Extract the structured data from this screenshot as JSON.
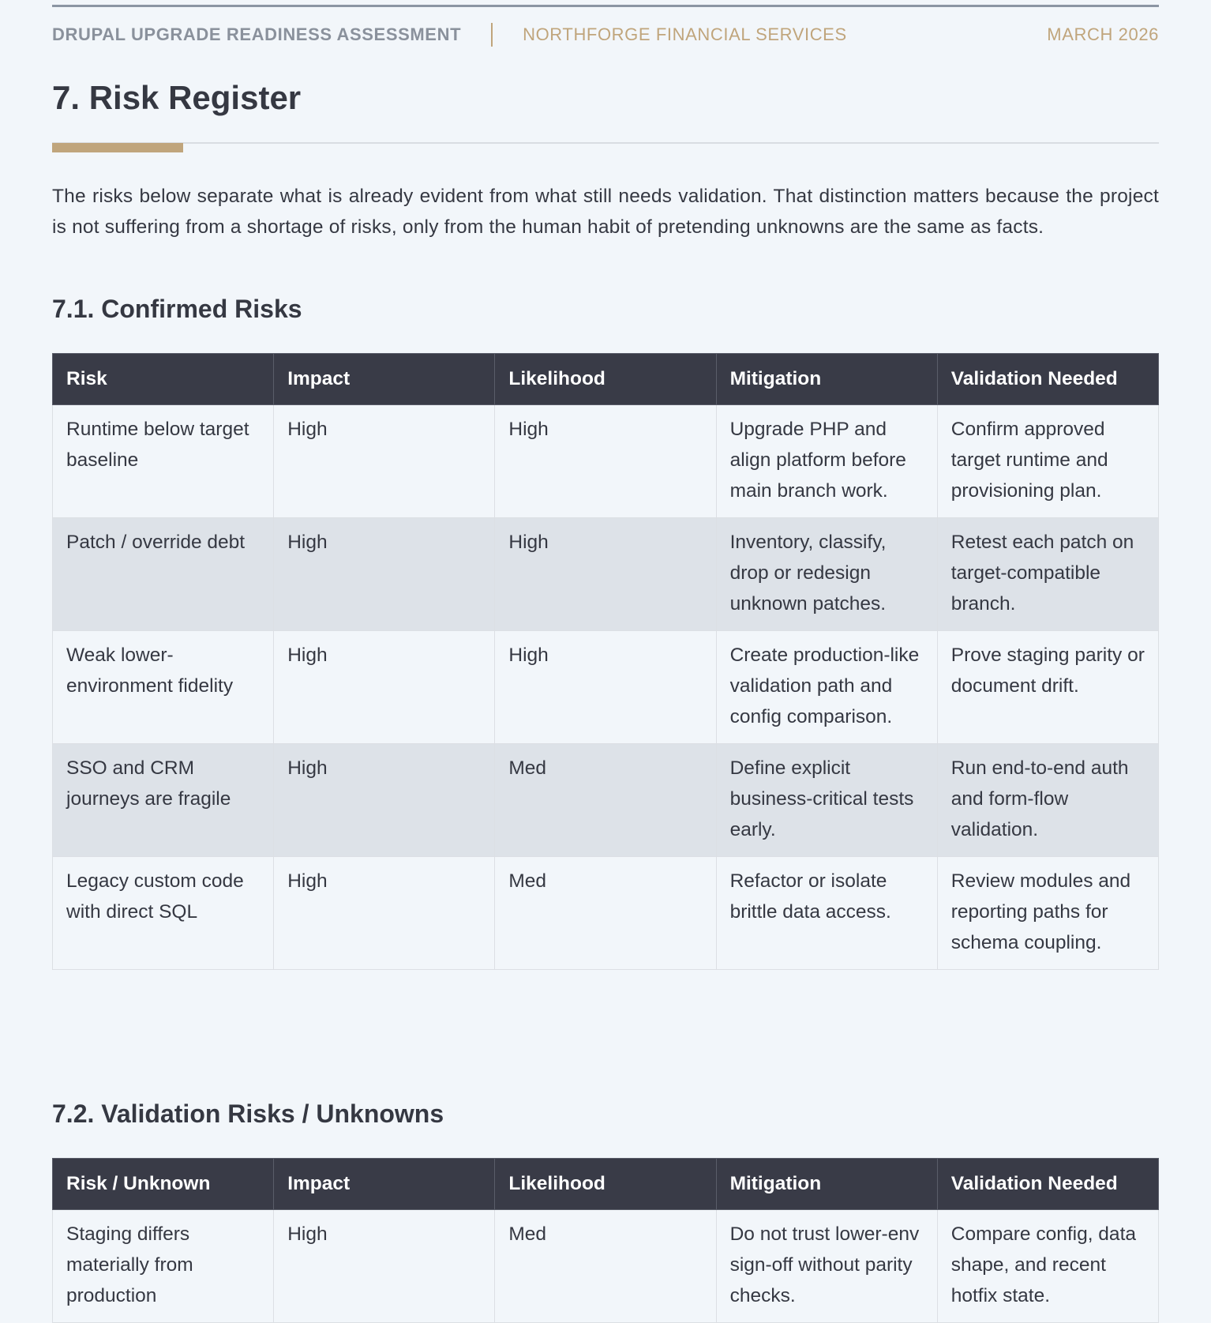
{
  "header": {
    "document_title": "DRUPAL UPGRADE READINESS ASSESSMENT",
    "client": "NORTHFORGE FINANCIAL SERVICES",
    "date": "MARCH 2026"
  },
  "section": {
    "title": "7. Risk Register",
    "intro": "The risks below separate what is already evident from what still needs validation. That distinction matters because the project is not suffering from a shortage of risks, only from the human habit of pretending unknowns are the same as facts."
  },
  "confirmed": {
    "heading": "7.1. Confirmed Risks",
    "columns": [
      "Risk",
      "Impact",
      "Likelihood",
      "Mitigation",
      "Validation Needed"
    ],
    "rows": [
      [
        "Runtime below target baseline",
        "High",
        "High",
        "Upgrade PHP and align platform before main branch work.",
        "Confirm approved target runtime and provisioning plan."
      ],
      [
        "Patch / override debt",
        "High",
        "High",
        "Inventory, classify, drop or redesign unknown patches.",
        "Retest each patch on target-compatible branch."
      ],
      [
        "Weak lower-environment fidelity",
        "High",
        "High",
        "Create production-like validation path and config comparison.",
        "Prove staging parity or document drift."
      ],
      [
        "SSO and CRM journeys are fragile",
        "High",
        "Med",
        "Define explicit business-critical tests early.",
        "Run end-to-end auth and form-flow validation."
      ],
      [
        "Legacy custom code with direct SQL",
        "High",
        "Med",
        "Refactor or isolate brittle data access.",
        "Review modules and reporting paths for schema coupling."
      ]
    ]
  },
  "validation": {
    "heading": "7.2. Validation Risks / Unknowns",
    "columns": [
      "Risk / Unknown",
      "Impact",
      "Likelihood",
      "Mitigation",
      "Validation Needed"
    ],
    "rows": [
      [
        "Staging differs materially from production",
        "High",
        "Med",
        "Do not trust lower-env sign-off without parity checks.",
        "Compare config, data shape, and recent hotfix state."
      ]
    ]
  },
  "colors": {
    "accent": "#c0a57c",
    "table_header": "#393b47",
    "row_alt": "#dde2e8",
    "background": "#f2f6fa"
  }
}
